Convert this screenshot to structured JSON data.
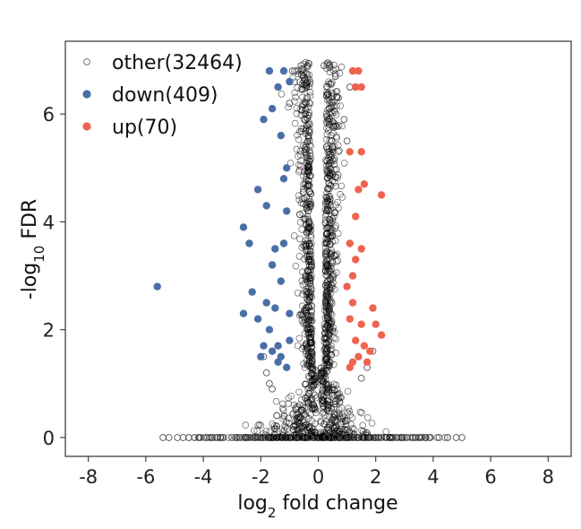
{
  "chart_data": {
    "type": "scatter",
    "title": "",
    "xlabel": {
      "base": "log",
      "sub": "2",
      "rest": " fold change"
    },
    "ylabel": {
      "base": "-log",
      "sub": "10",
      "rest": " FDR"
    },
    "xlim": [
      -8.8,
      8.8
    ],
    "ylim": [
      -0.35,
      7.35
    ],
    "xticks": [
      -8,
      -6,
      -4,
      -2,
      0,
      2,
      4,
      6,
      8
    ],
    "xtick_labels": [
      "-8",
      "-6",
      "-4",
      "-2",
      "0",
      "2",
      "4",
      "6",
      "8"
    ],
    "yticks": [
      0,
      2,
      4,
      6
    ],
    "ytick_labels": [
      "0",
      "2",
      "4",
      "6"
    ],
    "grid": false,
    "legend_position": "top-left",
    "colors": {
      "other": "#000000",
      "down": "#4a6fa5",
      "up": "#ef6350"
    },
    "legend": [
      {
        "key": "other",
        "label": "other(32464)",
        "marker": "hollow"
      },
      {
        "key": "down",
        "label": "down(409)",
        "marker": "filled"
      },
      {
        "key": "up",
        "label": "up(70)",
        "marker": "filled"
      }
    ],
    "series": [
      {
        "name": "other",
        "count": 32464,
        "points": [
          [
            -5.4,
            0
          ],
          [
            -5.2,
            0
          ],
          [
            -4.9,
            0
          ],
          [
            -4.7,
            0
          ],
          [
            -4.5,
            0
          ],
          [
            -4.3,
            0
          ],
          [
            -4.1,
            0
          ],
          [
            -3.9,
            0
          ],
          [
            -3.6,
            0
          ],
          [
            -3.3,
            0
          ],
          [
            -3.0,
            0
          ],
          [
            -2.7,
            0
          ],
          [
            -2.4,
            0
          ],
          [
            -2.1,
            0
          ],
          [
            -1.8,
            0
          ],
          [
            -1.5,
            0
          ],
          [
            -1.2,
            0
          ],
          [
            -0.9,
            0
          ],
          [
            -0.6,
            0
          ],
          [
            -0.3,
            0
          ],
          [
            0.3,
            0
          ],
          [
            0.6,
            0
          ],
          [
            0.9,
            0
          ],
          [
            1.2,
            0
          ],
          [
            1.5,
            0
          ],
          [
            1.8,
            0
          ],
          [
            2.1,
            0
          ],
          [
            2.4,
            0
          ],
          [
            2.7,
            0
          ],
          [
            3.0,
            0
          ],
          [
            3.3,
            0
          ],
          [
            3.6,
            0
          ],
          [
            3.9,
            0
          ],
          [
            4.2,
            0
          ],
          [
            4.5,
            0
          ],
          [
            4.8,
            0
          ],
          [
            5.0,
            0
          ],
          [
            -1.6,
            0.9
          ],
          [
            -1.8,
            1.2
          ],
          [
            -1.7,
            1.0
          ],
          [
            1.5,
            1.1
          ],
          [
            1.7,
            1.3
          ],
          [
            1.9,
            1.6
          ],
          [
            -1.9,
            1.5
          ],
          [
            -0.9,
            6.8
          ],
          [
            -0.6,
            6.9
          ],
          [
            -0.5,
            6.6
          ],
          [
            0.2,
            6.9
          ],
          [
            0.4,
            6.9
          ],
          [
            0.6,
            6.7
          ],
          [
            0.7,
            6.3
          ],
          [
            0.9,
            5.9
          ],
          [
            1.0,
            5.5
          ],
          [
            1.1,
            6.5
          ],
          [
            -1.0,
            6.2
          ]
        ],
        "fill": "none"
      },
      {
        "name": "down",
        "count": 409,
        "points": [
          [
            -5.6,
            2.8
          ],
          [
            -2.6,
            3.9
          ],
          [
            -2.4,
            3.6
          ],
          [
            -2.1,
            4.6
          ],
          [
            -1.9,
            5.9
          ],
          [
            -1.7,
            6.8
          ],
          [
            -1.6,
            6.1
          ],
          [
            -1.4,
            6.5
          ],
          [
            -1.3,
            5.6
          ],
          [
            -1.2,
            4.8
          ],
          [
            -1.1,
            4.2
          ],
          [
            -1.2,
            3.6
          ],
          [
            -1.3,
            2.9
          ],
          [
            -1.5,
            2.4
          ],
          [
            -1.7,
            2.0
          ],
          [
            -1.9,
            1.7
          ],
          [
            -2.0,
            1.5
          ],
          [
            -1.4,
            1.4
          ],
          [
            -1.1,
            1.3
          ],
          [
            -1.0,
            1.8
          ],
          [
            -1.0,
            2.3
          ],
          [
            -1.6,
            3.2
          ],
          [
            -1.8,
            2.5
          ],
          [
            -2.1,
            2.2
          ],
          [
            -1.2,
            6.8
          ],
          [
            -1.0,
            6.6
          ],
          [
            -1.1,
            5.0
          ],
          [
            -1.8,
            4.3
          ],
          [
            -2.3,
            2.7
          ],
          [
            -2.6,
            2.3
          ],
          [
            -1.4,
            1.7
          ],
          [
            -1.3,
            1.5
          ],
          [
            -1.6,
            1.6
          ],
          [
            -1.5,
            3.5
          ]
        ],
        "fill": "solid"
      },
      {
        "name": "up",
        "count": 70,
        "points": [
          [
            1.2,
            6.8
          ],
          [
            1.4,
            6.8
          ],
          [
            1.3,
            6.5
          ],
          [
            1.5,
            6.5
          ],
          [
            1.1,
            5.3
          ],
          [
            1.5,
            5.3
          ],
          [
            1.4,
            4.6
          ],
          [
            2.2,
            4.5
          ],
          [
            1.6,
            4.7
          ],
          [
            1.3,
            4.1
          ],
          [
            1.1,
            3.6
          ],
          [
            1.5,
            3.5
          ],
          [
            1.0,
            2.8
          ],
          [
            1.2,
            2.5
          ],
          [
            1.1,
            2.2
          ],
          [
            1.5,
            2.1
          ],
          [
            1.9,
            2.4
          ],
          [
            2.0,
            2.1
          ],
          [
            2.2,
            1.9
          ],
          [
            1.3,
            1.8
          ],
          [
            1.6,
            1.7
          ],
          [
            1.8,
            1.6
          ],
          [
            1.4,
            1.5
          ],
          [
            1.7,
            1.4
          ],
          [
            1.2,
            1.4
          ],
          [
            1.1,
            1.3
          ],
          [
            1.3,
            3.3
          ],
          [
            1.2,
            3.0
          ]
        ],
        "fill": "solid"
      }
    ]
  }
}
